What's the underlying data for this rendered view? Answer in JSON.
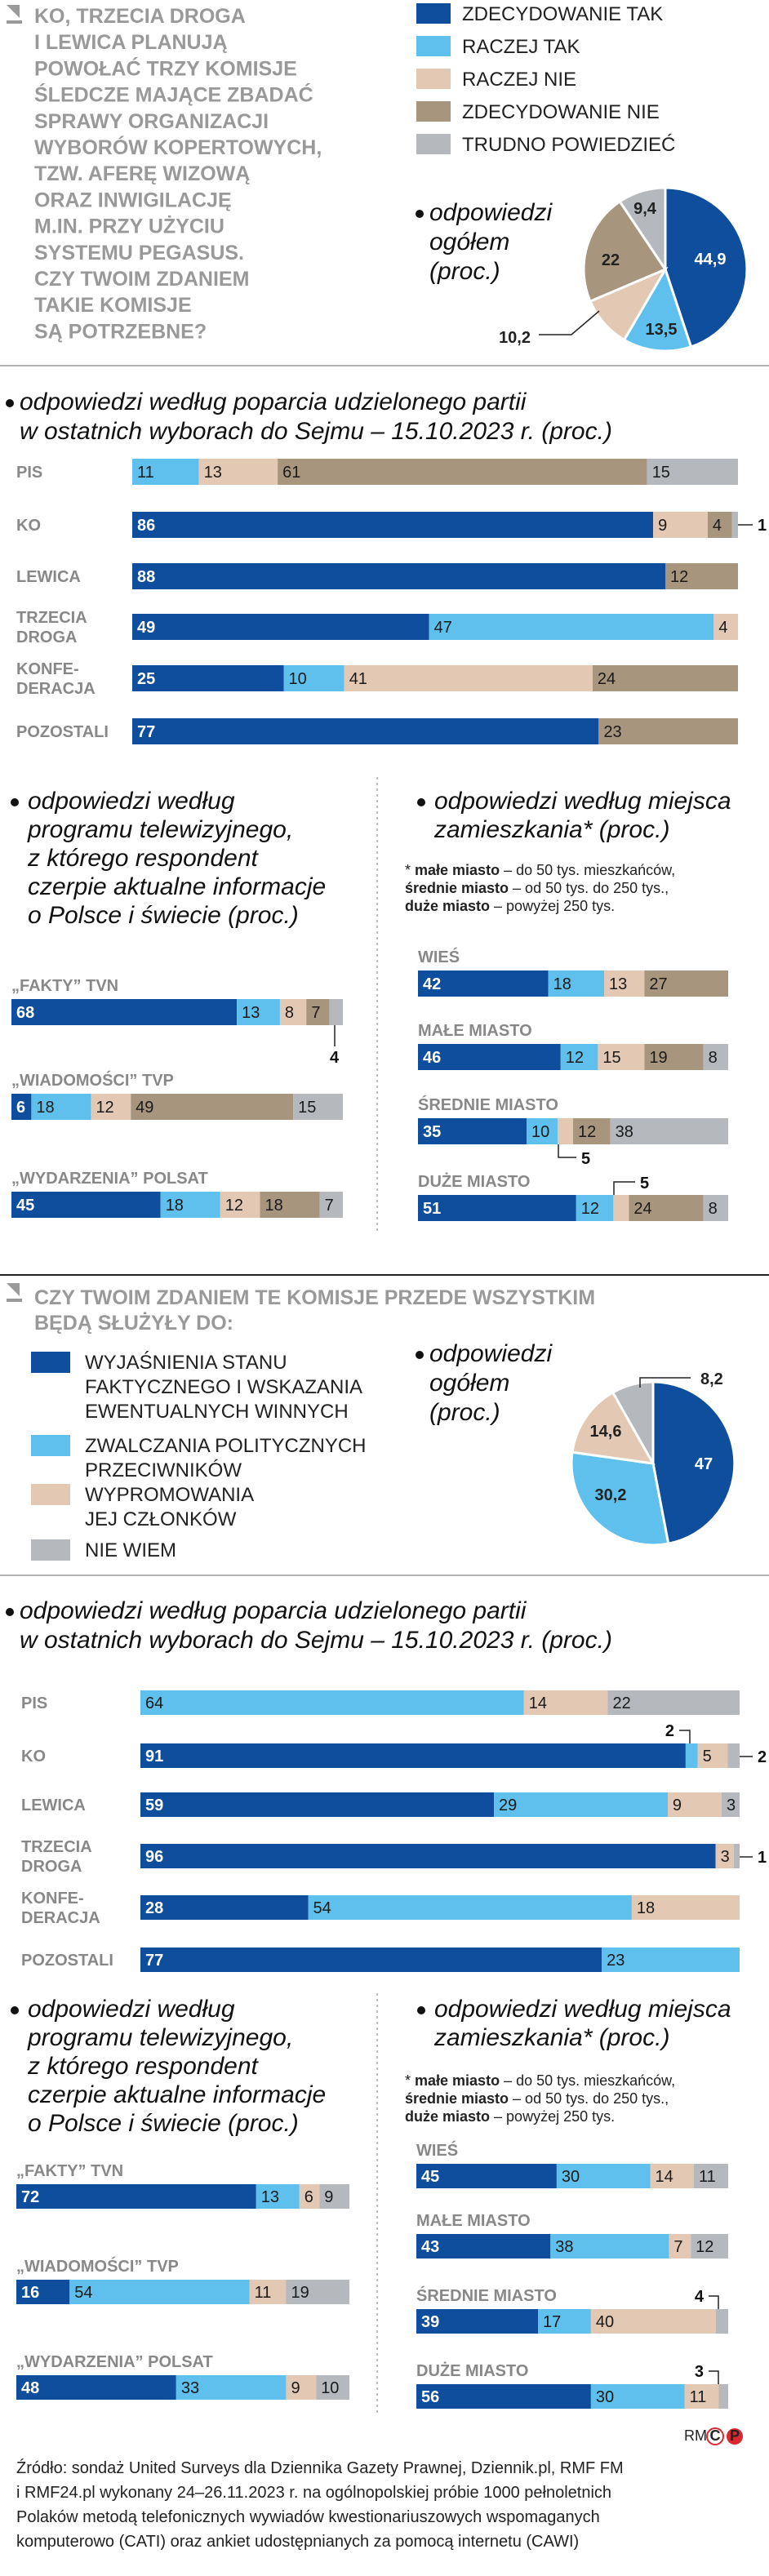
{
  "colors": {
    "zdecydowanie_tak": "#0f4e9c",
    "raczej_tak": "#5fc0ee",
    "raczej_nie": "#e3c9b4",
    "zdecydowanie_nie": "#a8957d",
    "trudno": "#b5b8bc"
  },
  "section1": {
    "question": [
      "KO, TRZECIA DROGA",
      "I LEWICA PLANUJĄ",
      "POWOŁAĆ TRZY KOMISJE",
      "ŚLEDCZE MAJĄCE ZBADAĆ",
      "SPRAWY ORGANIZACJI",
      "WYBORÓW KOPERTOWYCH,",
      "TZW. AFERĘ WIZOWĄ",
      "ORAZ INWIGILACJĘ",
      "M.IN. PRZY UŻYCIU",
      "SYSTEMU PEGASUS.",
      "CZY TWOIM ZDANIEM",
      "TAKIE KOMISJE",
      "SĄ POTRZEBNE?"
    ],
    "legend": [
      "ZDECYDOWANIE TAK",
      "RACZEJ TAK",
      "RACZEJ NIE",
      "ZDECYDOWANIE NIE",
      "TRUDNO POWIEDZIEĆ"
    ],
    "pie_caption": [
      "odpowiedzi",
      "ogółem",
      "(proc.)"
    ]
  },
  "section2": {
    "question": [
      "CZY TWOIM ZDANIEM TE KOMISJE PRZEDE WSZYSTKIM",
      "BĘDĄ SŁUŻYŁY DO:"
    ],
    "legend": [
      [
        "WYJAŚNIENIA STANU",
        "FAKTYCZNEGO I WSKAZANIA",
        "EWENTUALNYCH WINNYCH"
      ],
      [
        "ZWALCZANIA POLITYCZNYCH",
        "PRZECIWNIKÓW"
      ],
      [
        "WYPROMOWANIA",
        "JEJ CZŁONKÓW"
      ],
      [
        "NIE WIEM"
      ]
    ],
    "pie_caption": [
      "odpowiedzi",
      "ogółem",
      "(proc.)"
    ]
  },
  "subtitles": {
    "party": [
      "odpowiedzi według poparcia udzielonego partii",
      "w ostatnich wyborach do Sejmu – 15.10.2023 r. (proc.)"
    ],
    "tv": [
      "odpowiedzi według",
      "programu telewizyjnego,",
      "z którego respondent",
      "czerpie aktualne informacje",
      "o Polsce i świecie (proc.)"
    ],
    "place": [
      "odpowiedzi według miejsca",
      "zamieszkania* (proc.)"
    ],
    "place_note": [
      [
        "* ",
        "małe miasto",
        " – do 50 tys. mieszkańców,"
      ],
      [
        "",
        "średnie miasto",
        " – od 50 tys. do 250 tys.,"
      ],
      [
        "",
        "duże miasto",
        " – powyżej 250 tys."
      ]
    ]
  },
  "source": [
    "Źródło: sondaż United Surveys dla Dziennika Gazety Prawnej, Dziennik.pl, RMF FM",
    "i RMF24.pl wykonany 24–26.11.2023 r. na ogólnopolskiej próbie 1000 pełnoletnich",
    "Polaków metodą telefonicznych wywiadów kwestionariuszowych wspomaganych",
    "komputerowo (CATI) oraz ankiet udostępnianych za pomocą internetu (CAWI)"
  ],
  "credit": "RM",
  "chart_data": [
    {
      "id": "pie1",
      "type": "pie",
      "title": "odpowiedzi ogółem (proc.)",
      "labels": [
        "ZDECYDOWANIE TAK",
        "RACZEJ TAK",
        "RACZEJ NIE",
        "ZDECYDOWANIE NIE",
        "TRUDNO POWIEDZIEĆ"
      ],
      "values": [
        44.9,
        13.5,
        10.2,
        22,
        9.4
      ],
      "value_labels": [
        "44,9",
        "13,5",
        "10,2",
        "22",
        "9,4"
      ]
    },
    {
      "id": "party1",
      "type": "bar",
      "stacked": true,
      "orientation": "horizontal",
      "title": "odpowiedzi według poparcia udzielonego partii w ostatnich wyborach do Sejmu – 15.10.2023 r. (proc.)",
      "series_names": [
        "ZDECYDOWANIE TAK",
        "RACZEJ TAK",
        "RACZEJ NIE",
        "ZDECYDOWANIE NIE",
        "TRUDNO POWIEDZIEĆ"
      ],
      "rows": [
        {
          "label": [
            "PIS"
          ],
          "values": [
            0,
            11,
            13,
            61,
            15
          ]
        },
        {
          "label": [
            "KO"
          ],
          "values": [
            86,
            0,
            9,
            4,
            1
          ]
        },
        {
          "label": [
            "LEWICA"
          ],
          "values": [
            88,
            0,
            0,
            12,
            0
          ]
        },
        {
          "label": [
            "TRZECIA",
            "DROGA"
          ],
          "values": [
            49,
            47,
            4,
            0,
            0
          ]
        },
        {
          "label": [
            "KONFE-",
            "DERACJA"
          ],
          "values": [
            25,
            10,
            41,
            24,
            0
          ]
        },
        {
          "label": [
            "POZOSTALI"
          ],
          "values": [
            77,
            0,
            0,
            23,
            0
          ]
        }
      ]
    },
    {
      "id": "tv1",
      "type": "bar",
      "stacked": true,
      "orientation": "horizontal",
      "title": "odpowiedzi według programu telewizyjnego (proc.)",
      "series_names": [
        "ZDECYDOWANIE TAK",
        "RACZEJ TAK",
        "RACZEJ NIE",
        "ZDECYDOWANIE NIE",
        "TRUDNO POWIEDZIEĆ"
      ],
      "rows": [
        {
          "label": "„FAKTY” TVN",
          "values": [
            68,
            13,
            8,
            7,
            4
          ]
        },
        {
          "label": "„WIADOMOŚCI” TVP",
          "values": [
            6,
            18,
            12,
            49,
            15
          ]
        },
        {
          "label": "„WYDARZENIA” POLSAT",
          "values": [
            45,
            18,
            12,
            18,
            7
          ]
        }
      ]
    },
    {
      "id": "place1",
      "type": "bar",
      "stacked": true,
      "orientation": "horizontal",
      "title": "odpowiedzi według miejsca zamieszkania* (proc.)",
      "series_names": [
        "ZDECYDOWANIE TAK",
        "RACZEJ TAK",
        "RACZEJ NIE",
        "ZDECYDOWANIE NIE",
        "TRUDNO POWIEDZIEĆ"
      ],
      "rows": [
        {
          "label": "WIEŚ",
          "values": [
            42,
            18,
            13,
            27,
            0
          ]
        },
        {
          "label": "MAŁE MIASTO",
          "values": [
            46,
            12,
            15,
            19,
            8
          ]
        },
        {
          "label": "ŚREDNIE MIASTO",
          "values": [
            35,
            10,
            5,
            12,
            38
          ]
        },
        {
          "label": "DUŻE MIASTO",
          "values": [
            51,
            12,
            5,
            24,
            8
          ]
        }
      ]
    },
    {
      "id": "pie2",
      "type": "pie",
      "title": "odpowiedzi ogółem (proc.)",
      "labels": [
        "WYJAŚNIENIA STANU FAKTYCZNEGO I WSKAZANIA EWENTUALNYCH WINNYCH",
        "ZWALCZANIA POLITYCZNYCH PRZECIWNIKÓW",
        "WYPROMOWANIA JEJ CZŁONKÓW",
        "NIE WIEM"
      ],
      "values": [
        47,
        30.2,
        14.6,
        8.2
      ],
      "value_labels": [
        "47",
        "30,2",
        "14,6",
        "8,2"
      ]
    },
    {
      "id": "party2",
      "type": "bar",
      "stacked": true,
      "orientation": "horizontal",
      "title": "odpowiedzi według poparcia udzielonego partii w ostatnich wyborach do Sejmu – 15.10.2023 r. (proc.)",
      "series_names": [
        "WYJAŚNIENIA STANU FAKTYCZNEGO",
        "ZWALCZANIA POLITYCZNYCH PRZECIWNIKÓW",
        "WYPROMOWANIA JEJ CZŁONKÓW",
        "NIE WIEM"
      ],
      "rows": [
        {
          "label": [
            "PIS"
          ],
          "values": [
            0,
            64,
            14,
            22
          ]
        },
        {
          "label": [
            "KO"
          ],
          "values": [
            91,
            2,
            5,
            2
          ]
        },
        {
          "label": [
            "LEWICA"
          ],
          "values": [
            59,
            29,
            9,
            3
          ]
        },
        {
          "label": [
            "TRZECIA",
            "DROGA"
          ],
          "values": [
            96,
            0,
            3,
            1
          ]
        },
        {
          "label": [
            "KONFE-",
            "DERACJA"
          ],
          "values": [
            28,
            54,
            18,
            0
          ]
        },
        {
          "label": [
            "POZOSTALI"
          ],
          "values": [
            77,
            23,
            0,
            0
          ]
        }
      ]
    },
    {
      "id": "tv2",
      "type": "bar",
      "stacked": true,
      "orientation": "horizontal",
      "title": "odpowiedzi według programu telewizyjnego (proc.)",
      "series_names": [
        "WYJAŚNIENIA STANU FAKTYCZNEGO",
        "ZWALCZANIA POLITYCZNYCH PRZECIWNIKÓW",
        "WYPROMOWANIA JEJ CZŁONKÓW",
        "NIE WIEM"
      ],
      "rows": [
        {
          "label": "„FAKTY” TVN",
          "values": [
            72,
            13,
            6,
            9
          ]
        },
        {
          "label": "„WIADOMOŚCI” TVP",
          "values": [
            16,
            54,
            11,
            19
          ]
        },
        {
          "label": "„WYDARZENIA” POLSAT",
          "values": [
            48,
            33,
            9,
            10
          ]
        }
      ]
    },
    {
      "id": "place2",
      "type": "bar",
      "stacked": true,
      "orientation": "horizontal",
      "title": "odpowiedzi według miejsca zamieszkania* (proc.)",
      "series_names": [
        "WYJAŚNIENIA STANU FAKTYCZNEGO",
        "ZWALCZANIA POLITYCZNYCH PRZECIWNIKÓW",
        "WYPROMOWANIA JEJ CZŁONKÓW",
        "NIE WIEM"
      ],
      "rows": [
        {
          "label": "WIEŚ",
          "values": [
            45,
            30,
            14,
            11
          ]
        },
        {
          "label": "MAŁE MIASTO",
          "values": [
            43,
            38,
            7,
            12
          ]
        },
        {
          "label": "ŚREDNIE MIASTO",
          "values": [
            39,
            17,
            40,
            4
          ]
        },
        {
          "label": "DUŻE MIASTO",
          "values": [
            56,
            30,
            11,
            3
          ]
        }
      ]
    }
  ]
}
